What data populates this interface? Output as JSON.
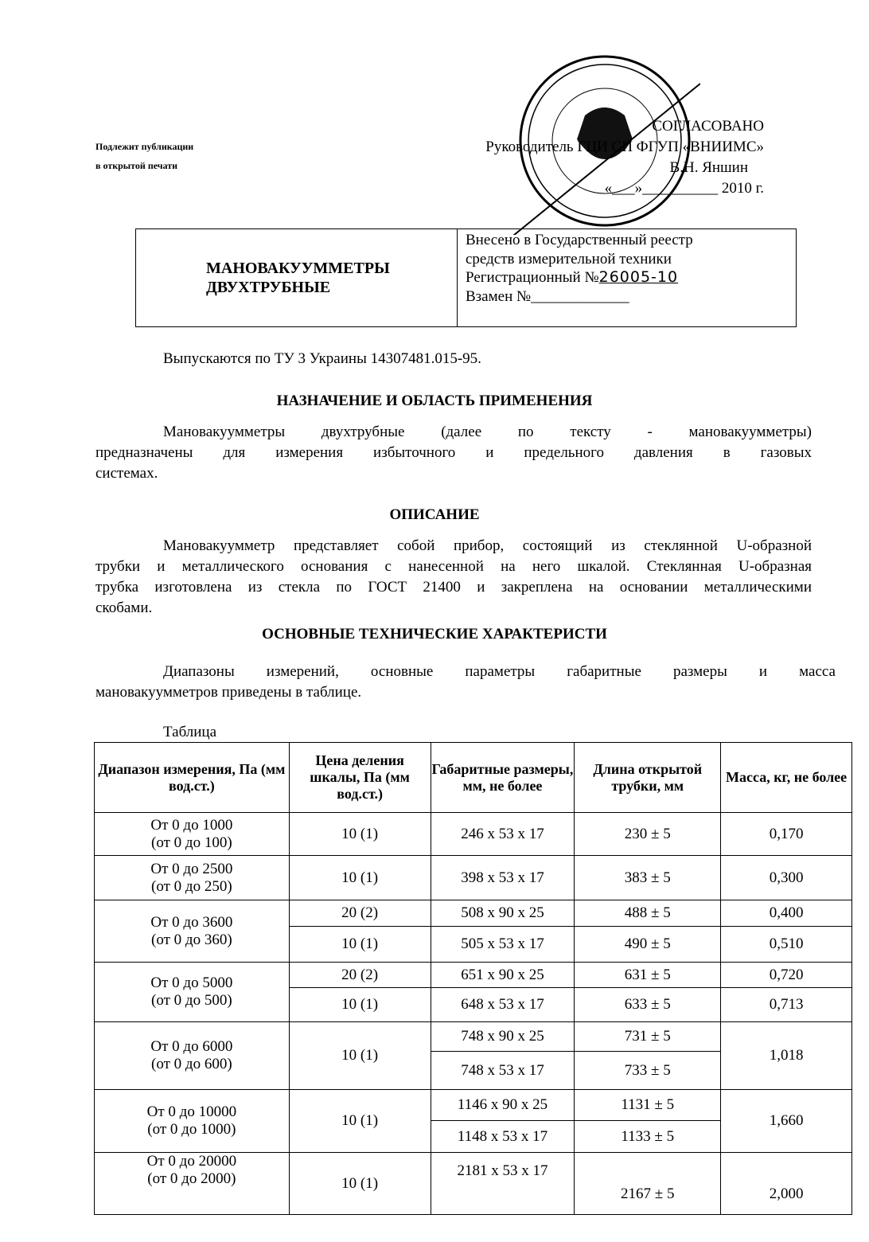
{
  "publication_note": [
    "Подлежит публикации",
    "в открытой печати"
  ],
  "approval": {
    "title": "СОГЛАСОВАНО",
    "line1": "Руководитель ГЦИ СИ ФГУП «ВНИИМС»",
    "line2": "В.Н. Яншин",
    "date_prefix": "«___»__________",
    "year": "2010   г."
  },
  "stamp": {
    "text": "ФЕДЕРАЛЬНОЕ АГЕНТСТВО ПО ТЕХНИЧЕСКОМУ РЕГУЛИРОВАНИЮ И МЕТРОЛОГИИ • ФЕДЕРАЛЬНОЕ ГОСУДАРСТВЕННОЕ УНИТАРНОЕ ПРЕДПРИЯТИЕ ВСЕРОССИЙСКИЙ НАУЧНО-ИССЛЕДОВАТЕЛЬСКИЙ ИНСТИТУТ МЕТРОЛОГИЧЕСКОЙ СЛУЖБЫ (ФГУП «ВНИИМС») • ОГРН"
  },
  "header_box": {
    "title": [
      "МАНОВАКУУММЕТРЫ",
      "ДВУХТРУБНЫЕ"
    ],
    "registry": [
      "Внесено в Государственный реестр",
      "средств измерительной техники"
    ],
    "reg_label": "Регистрационный  №",
    "reg_number": "26005-10",
    "replaces_label": "Взамен  №_____________"
  },
  "issued": "Выпускаются по ТУ  3 Украины 14307481.015-95.",
  "sections": {
    "purpose_title": "НАЗНАЧЕНИЕ И ОБЛАСТЬ ПРИМЕНЕНИЯ",
    "purpose_lines": [
      "Мановакуумметры        двухтрубные    (далее  по  тексту  -  мановакуумметры)",
      "предназначены   для    измерения  избыточного     и  предельного давления в газовых",
      "системах."
    ],
    "description_title": "ОПИСАНИЕ",
    "description_lines": [
      "Мановакуумметр представляет собой прибор, состоящий из стеклянной U-образной",
      "трубки и металлического основания с нанесенной на него шкалой. Стеклянная U-образная",
      "трубка изготовлена из стекла по ГОСТ 21400 и  закреплена на основании металлическими",
      "скобами."
    ],
    "specs_title": "ОСНОВНЫЕ ТЕХНИЧЕСКИЕ ХАРАКТЕРИСТИ",
    "specs_lines": [
      "Диапазоны   измерений,   основные   параметры   габаритные     размеры    и    масса",
      "мановакуумметров приведены в таблице."
    ]
  },
  "table": {
    "caption": "Таблица",
    "headers": [
      "Диапазон измерения, Па (мм вод.ст.)",
      "Цена деления шкалы, Па (мм вод.ст.)",
      "Габаритные размеры, мм, не  более",
      "Длина открытой трубки, мм",
      "Масса, кг, не более"
    ],
    "r1": {
      "range": "От 0 до 1000",
      "range2": "(от 0 до 100)",
      "div": "10 (1)",
      "dims": "246 x 53 x 17",
      "len": "230  ± 5",
      "mass": "0,170"
    },
    "r2": {
      "range": "От 0 до 2500",
      "range2": "(от 0 до 250)",
      "div": "10 (1)",
      "dims": "398 x 53 x 17",
      "len": "383  ± 5",
      "mass": "0,300"
    },
    "r3": {
      "range": "От 0 до 3600",
      "range2": "(от 0 до 360)",
      "div_a": "20 (2)",
      "dims_a": "508 x 90 x 25",
      "len_a": "488 ± 5",
      "mass_a": "0,400",
      "div_b": "10 (1)",
      "dims_b": "505 x 53 x 17",
      "len_b": "490 ± 5",
      "mass_b": "0,510"
    },
    "r4": {
      "range": "От 0 до 5000",
      "range2": "(от 0 до 500)",
      "div_a": "20 (2)",
      "dims_a": "651 x 90 x 25",
      "len_a": "631  ± 5",
      "mass_a": "0,720",
      "div_b": "10 (1)",
      "dims_b": "648 x 53 x 17",
      "len_b": "633 ± 5",
      "mass_b": "0,713"
    },
    "r5": {
      "range": "От 0 до 6000",
      "range2": "(от 0 до 600)",
      "div": "10 (1)",
      "dims_a": "748 x 90 x 25",
      "len_a": "731 ± 5",
      "dims_b": "748 x 53 x 17",
      "len_b": "733 ± 5",
      "mass": "1,018"
    },
    "r6": {
      "range": "От 0 до 10000",
      "range2": "(от 0 до 1000)",
      "div": "10 (1)",
      "dims_a": "1146 x 90 x 25",
      "len_a": "1131 ± 5",
      "dims_b": "1148 x 53 x 17",
      "len_b": "1133 ± 5",
      "mass": "1,660"
    },
    "r7": {
      "range": "От 0 до 20000",
      "range2": "(от 0 до 2000)",
      "div": "10 (1)",
      "dims": "2181 x  53 x 17",
      "len": "2167 ± 5",
      "mass": "2,000"
    }
  }
}
